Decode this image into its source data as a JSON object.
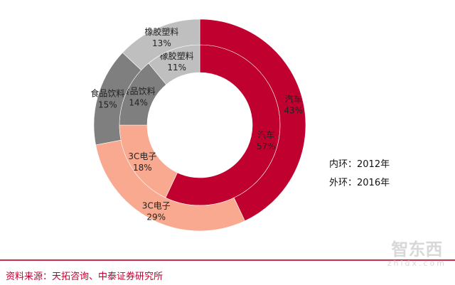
{
  "chart_data": {
    "type": "pie",
    "subtype": "double-donut",
    "categories": [
      "汽车",
      "3C电子",
      "食品饮料",
      "橡胶塑料"
    ],
    "colors": [
      "#C0002E",
      "#F9A98F",
      "#7F7F7F",
      "#BFBFBF"
    ],
    "series": [
      {
        "name": "内环：2012年",
        "ring": "inner",
        "values": [
          57,
          18,
          14,
          11
        ],
        "labels": [
          "57%",
          "18%",
          "14%",
          "11%"
        ]
      },
      {
        "name": "外环：2016年",
        "ring": "outer",
        "values": [
          43,
          29,
          15,
          13
        ],
        "labels": [
          "43%",
          "29%",
          "15%",
          "13%"
        ]
      }
    ],
    "start": "12 o'clock, clockwise"
  },
  "legend": {
    "inner": "内环：2012年",
    "outer": "外环：2016年"
  },
  "source": "资料来源：天拓咨询、中泰证券研究所",
  "watermark": {
    "logo": "智东西",
    "url": "zhidx.com"
  }
}
